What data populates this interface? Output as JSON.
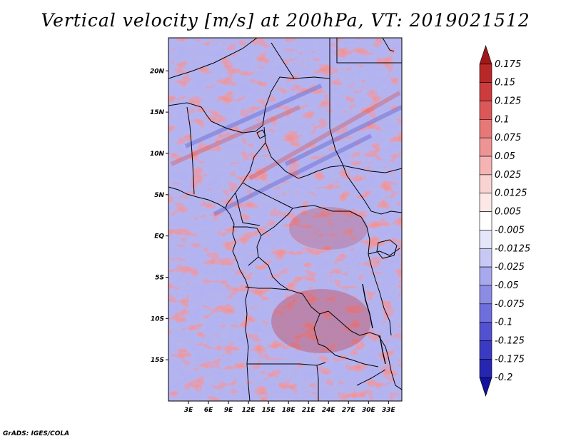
{
  "title": "Vertical velocity [m/s] at 200hPa, VT: 2019021512",
  "credit": "GrADS: IGES/COLA",
  "map": {
    "lon_range": [
      0,
      35
    ],
    "lat_range": [
      -20,
      24
    ],
    "lat_ticks": [
      {
        "lat": 20,
        "label": "20N"
      },
      {
        "lat": 15,
        "label": "15N"
      },
      {
        "lat": 10,
        "label": "10N"
      },
      {
        "lat": 5,
        "label": "5N"
      },
      {
        "lat": 0,
        "label": "EQ"
      },
      {
        "lat": -5,
        "label": "5S"
      },
      {
        "lat": -10,
        "label": "10S"
      },
      {
        "lat": -15,
        "label": "15S"
      }
    ],
    "lon_ticks": [
      {
        "lon": 3,
        "label": "3E"
      },
      {
        "lon": 6,
        "label": "6E"
      },
      {
        "lon": 9,
        "label": "9E"
      },
      {
        "lon": 12,
        "label": "12E"
      },
      {
        "lon": 15,
        "label": "15E"
      },
      {
        "lon": 18,
        "label": "18E"
      },
      {
        "lon": 21,
        "label": "21E"
      },
      {
        "lon": 24,
        "label": "24E"
      },
      {
        "lon": 27,
        "label": "27E"
      },
      {
        "lon": 30,
        "label": "30E"
      },
      {
        "lon": 33,
        "label": "33E"
      }
    ]
  },
  "colorbar": {
    "levels": [
      "0.175",
      "0.15",
      "0.125",
      "0.1",
      "0.075",
      "0.05",
      "0.025",
      "0.0125",
      "0.005",
      "-0.005",
      "-0.0125",
      "-0.025",
      "-0.05",
      "-0.075",
      "-0.1",
      "-0.125",
      "-0.175",
      "-0.2"
    ],
    "colors": [
      "#a01818",
      "#b82828",
      "#cc3c3c",
      "#dc5858",
      "#e67878",
      "#ee9494",
      "#f4b4b4",
      "#f9d2d2",
      "#fde8e8",
      "#ffffff",
      "#e6e6fa",
      "#c8c8f4",
      "#a8a8ec",
      "#8c8ce4",
      "#6e6edc",
      "#5252d0",
      "#3a3ac2",
      "#2626b0",
      "#12129a"
    ]
  }
}
